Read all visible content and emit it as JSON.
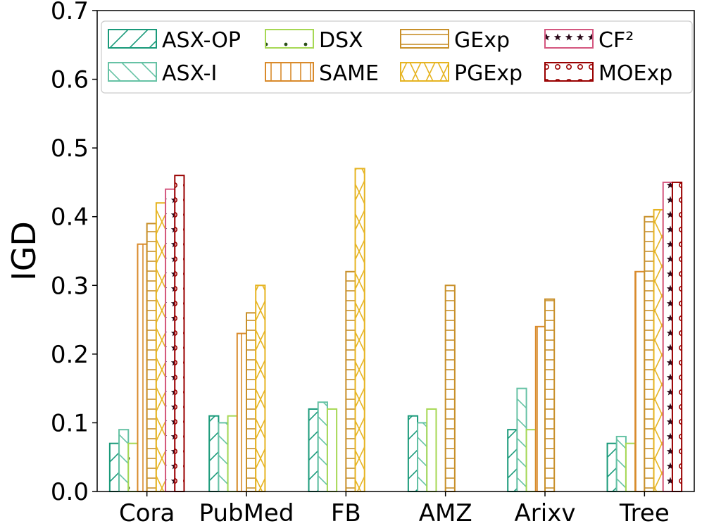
{
  "chart_data": {
    "type": "bar",
    "title": "",
    "xlabel": "",
    "ylabel": "IGD",
    "ylim": [
      0,
      0.7
    ],
    "yticks": [
      "0.0",
      "0.1",
      "0.2",
      "0.3",
      "0.4",
      "0.5",
      "0.6",
      "0.7"
    ],
    "grid": false,
    "legend_position": "top",
    "categories": [
      "Cora",
      "PubMed",
      "FB",
      "AMZ",
      "Arixv",
      "Tree"
    ],
    "series": [
      {
        "name": "ASX-OP",
        "color": "#1a9a7a",
        "pattern": "diag-forward",
        "values": [
          0.07,
          0.11,
          0.12,
          0.11,
          0.09,
          0.07
        ]
      },
      {
        "name": "ASX-I",
        "color": "#66c2a5",
        "pattern": "diag-back",
        "values": [
          0.09,
          0.1,
          0.13,
          0.1,
          0.15,
          0.08
        ]
      },
      {
        "name": "DSX",
        "color": "#a6d854",
        "pattern": "dots",
        "values": [
          0.07,
          0.11,
          0.12,
          0.12,
          0.09,
          0.07
        ]
      },
      {
        "name": "SAME",
        "color": "#d98a2b",
        "pattern": "vertical",
        "values": [
          0.36,
          0.23,
          0.0,
          0.0,
          0.24,
          0.32
        ]
      },
      {
        "name": "GExp",
        "color": "#c8902a",
        "pattern": "horizontal",
        "values": [
          0.39,
          0.26,
          0.32,
          0.3,
          0.28,
          0.4
        ]
      },
      {
        "name": "PGExp",
        "color": "#e6b422",
        "pattern": "cross",
        "values": [
          0.42,
          0.3,
          0.47,
          0.0,
          0.0,
          0.41
        ]
      },
      {
        "name": "CF²",
        "color": "#d4567f",
        "pattern": "stars",
        "values": [
          0.44,
          0.0,
          0.0,
          0.0,
          0.0,
          0.45
        ]
      },
      {
        "name": "MOExp",
        "color": "#990000",
        "pattern": "circles",
        "values": [
          0.46,
          0.0,
          0.0,
          0.0,
          0.0,
          0.45
        ]
      }
    ]
  }
}
